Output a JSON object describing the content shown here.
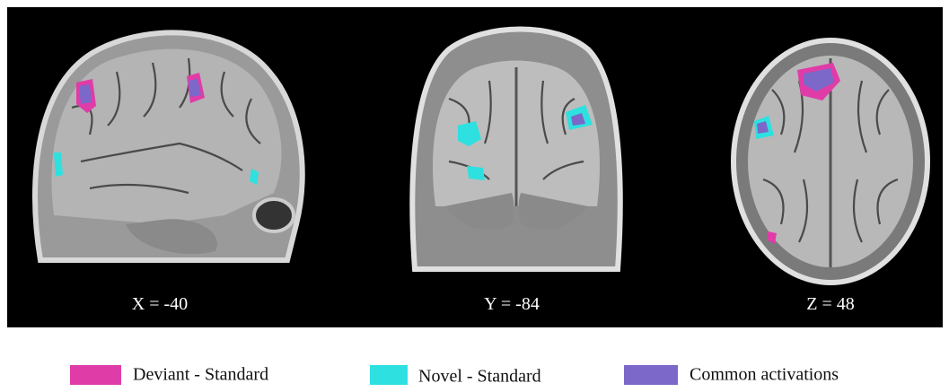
{
  "panels": [
    {
      "label": "X = -40"
    },
    {
      "label": "Y = -84"
    },
    {
      "label": "Z = 48"
    }
  ],
  "legend": [
    {
      "label": "Deviant - Standard",
      "color": "#e03ca8"
    },
    {
      "label": "Novel - Standard",
      "color": "#2ee0e0"
    },
    {
      "label": "Common activations",
      "color": "#7b68c8"
    }
  ]
}
